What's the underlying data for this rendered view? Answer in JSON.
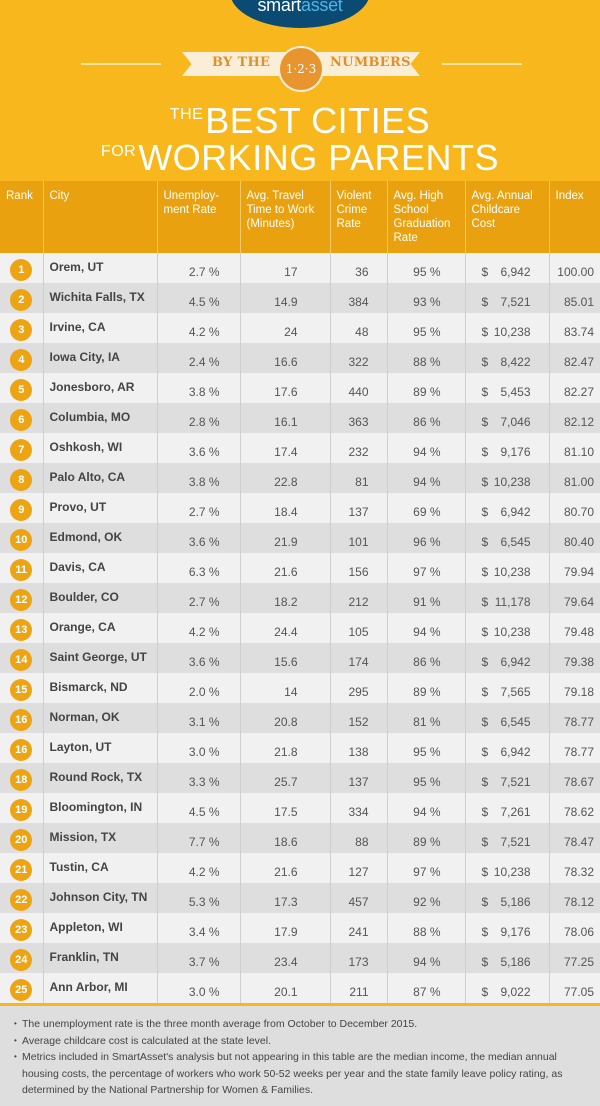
{
  "brand": {
    "smart": "smart",
    "asset": "asset"
  },
  "ribbon": {
    "left": "BY THE",
    "badge": "1·2·3",
    "right": "NUMBERS"
  },
  "title": {
    "line1_small": "THE",
    "line1": "BEST CITIES",
    "line2_small": "FOR",
    "line2": "WORKING PARENTS"
  },
  "colors": {
    "background": "#f8b71c",
    "header": "#eaa10f",
    "badge": "#eda413",
    "logo": "#0b4a72"
  },
  "table": {
    "headers": [
      "Rank",
      "City",
      "Unemploy-ment Rate",
      "Avg. Travel Time to Work (Minutes)",
      "Violent Crime Rate",
      "Avg. High School Graduation Rate",
      "Avg. Annual Childcare Cost",
      "Index"
    ],
    "rows": [
      {
        "rank": "1",
        "city": "Orem, UT",
        "unemp": "2.7 %",
        "travel": "17",
        "crime": "36",
        "grad": "95 %",
        "cost": "6,942",
        "index": "100.00"
      },
      {
        "rank": "2",
        "city": "Wichita Falls, TX",
        "unemp": "4.5 %",
        "travel": "14.9",
        "crime": "384",
        "grad": "93 %",
        "cost": "7,521",
        "index": "85.01"
      },
      {
        "rank": "3",
        "city": "Irvine, CA",
        "unemp": "4.2 %",
        "travel": "24",
        "crime": "48",
        "grad": "95 %",
        "cost": "10,238",
        "index": "83.74"
      },
      {
        "rank": "4",
        "city": "Iowa City, IA",
        "unemp": "2.4 %",
        "travel": "16.6",
        "crime": "322",
        "grad": "88 %",
        "cost": "8,422",
        "index": "82.47"
      },
      {
        "rank": "5",
        "city": "Jonesboro, AR",
        "unemp": "3.8 %",
        "travel": "17.6",
        "crime": "440",
        "grad": "89 %",
        "cost": "5,453",
        "index": "82.27"
      },
      {
        "rank": "6",
        "city": "Columbia, MO",
        "unemp": "2.8 %",
        "travel": "16.1",
        "crime": "363",
        "grad": "86 %",
        "cost": "7,046",
        "index": "82.12"
      },
      {
        "rank": "7",
        "city": "Oshkosh, WI",
        "unemp": "3.6 %",
        "travel": "17.4",
        "crime": "232",
        "grad": "94 %",
        "cost": "9,176",
        "index": "81.10"
      },
      {
        "rank": "8",
        "city": "Palo Alto, CA",
        "unemp": "3.8 %",
        "travel": "22.8",
        "crime": "81",
        "grad": "94 %",
        "cost": "10,238",
        "index": "81.00"
      },
      {
        "rank": "9",
        "city": "Provo, UT",
        "unemp": "2.7 %",
        "travel": "18.4",
        "crime": "137",
        "grad": "69 %",
        "cost": "6,942",
        "index": "80.70"
      },
      {
        "rank": "10",
        "city": "Edmond, OK",
        "unemp": "3.6 %",
        "travel": "21.9",
        "crime": "101",
        "grad": "96 %",
        "cost": "6,545",
        "index": "80.40"
      },
      {
        "rank": "11",
        "city": "Davis, CA",
        "unemp": "6.3 %",
        "travel": "21.6",
        "crime": "156",
        "grad": "97 %",
        "cost": "10,238",
        "index": "79.94"
      },
      {
        "rank": "12",
        "city": "Boulder, CO",
        "unemp": "2.7 %",
        "travel": "18.2",
        "crime": "212",
        "grad": "91 %",
        "cost": "11,178",
        "index": "79.64"
      },
      {
        "rank": "13",
        "city": "Orange, CA",
        "unemp": "4.2 %",
        "travel": "24.4",
        "crime": "105",
        "grad": "94 %",
        "cost": "10,238",
        "index": "79.48"
      },
      {
        "rank": "14",
        "city": "Saint George, UT",
        "unemp": "3.6 %",
        "travel": "15.6",
        "crime": "174",
        "grad": "86 %",
        "cost": "6,942",
        "index": "79.38"
      },
      {
        "rank": "15",
        "city": "Bismarck, ND",
        "unemp": "2.0 %",
        "travel": "14",
        "crime": "295",
        "grad": "89 %",
        "cost": "7,565",
        "index": "79.18"
      },
      {
        "rank": "16",
        "city": "Norman, OK",
        "unemp": "3.1 %",
        "travel": "20.8",
        "crime": "152",
        "grad": "81 %",
        "cost": "6,545",
        "index": "78.77"
      },
      {
        "rank": "16",
        "city": "Layton, UT",
        "unemp": "3.0 %",
        "travel": "21.8",
        "crime": "138",
        "grad": "95 %",
        "cost": "6,942",
        "index": "78.77"
      },
      {
        "rank": "18",
        "city": "Round Rock, TX",
        "unemp": "3.3 %",
        "travel": "25.7",
        "crime": "137",
        "grad": "95 %",
        "cost": "7,521",
        "index": "78.67"
      },
      {
        "rank": "19",
        "city": "Bloomington, IN",
        "unemp": "4.5 %",
        "travel": "17.5",
        "crime": "334",
        "grad": "94 %",
        "cost": "7,261",
        "index": "78.62"
      },
      {
        "rank": "20",
        "city": "Mission, TX",
        "unemp": "7.7 %",
        "travel": "18.6",
        "crime": "88",
        "grad": "89 %",
        "cost": "7,521",
        "index": "78.47"
      },
      {
        "rank": "21",
        "city": "Tustin, CA",
        "unemp": "4.2 %",
        "travel": "21.6",
        "crime": "127",
        "grad": "97 %",
        "cost": "10,238",
        "index": "78.32"
      },
      {
        "rank": "22",
        "city": "Johnson City, TN",
        "unemp": "5.3 %",
        "travel": "17.3",
        "crime": "457",
        "grad": "92 %",
        "cost": "5,186",
        "index": "78.12"
      },
      {
        "rank": "23",
        "city": "Appleton, WI",
        "unemp": "3.4 %",
        "travel": "17.9",
        "crime": "241",
        "grad": "88 %",
        "cost": "9,176",
        "index": "78.06"
      },
      {
        "rank": "24",
        "city": "Franklin, TN",
        "unemp": "3.7 %",
        "travel": "23.4",
        "crime": "173",
        "grad": "94 %",
        "cost": "5,186",
        "index": "77.25"
      },
      {
        "rank": "25",
        "city": "Ann Arbor, MI",
        "unemp": "3.0 %",
        "travel": "20.1",
        "crime": "211",
        "grad": "87 %",
        "cost": "9,022",
        "index": "77.05"
      }
    ]
  },
  "currency_symbol": "$",
  "footnotes": [
    "The unemployment rate is the three month average from October to December 2015.",
    "Average childcare cost is calculated at the state level.",
    "Metrics included in SmartAsset's analysis but not appearing in this table are the median income, the median annual housing costs, the percentage of workers who work 50-52 weeks per year and the state family leave policy rating, as determined by the National Partnership for Women & Families."
  ]
}
